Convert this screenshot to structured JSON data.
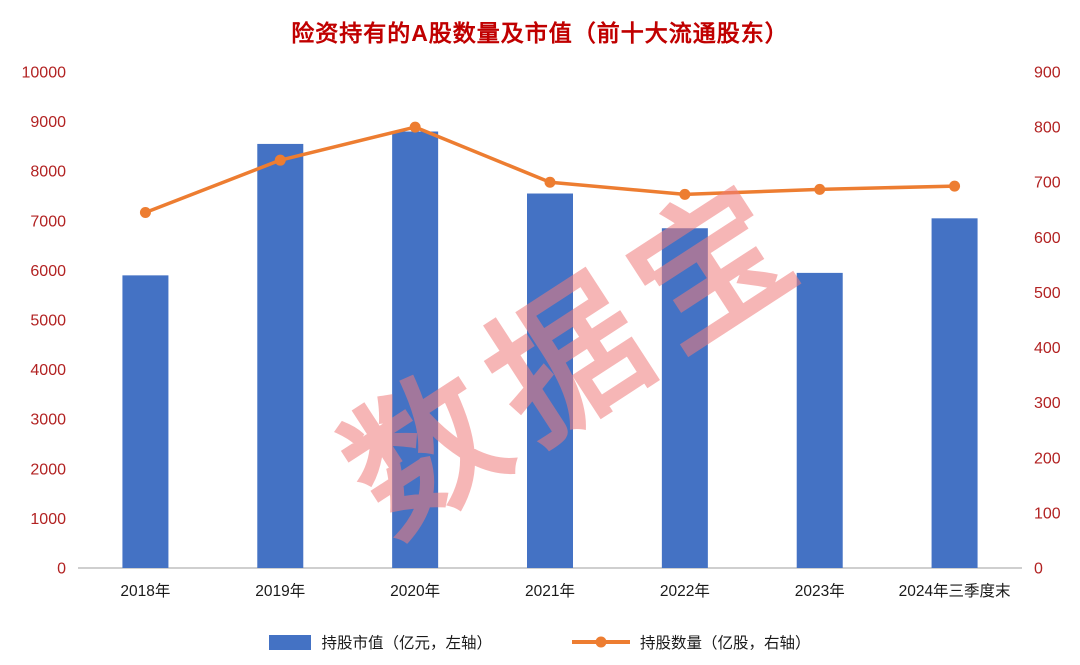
{
  "watermark": "数据宝",
  "colors": {
    "title": "#C00000",
    "tick_label": "#B22222",
    "x_label": "#1a1a1a",
    "watermark": "#F07C7C",
    "axis_line": "#BFBFBF"
  },
  "chart_data": {
    "type": "combo-bar-line",
    "title": "险资持有的A股数量及市值（前十大流通股东）",
    "categories": [
      "2018年",
      "2019年",
      "2020年",
      "2021年",
      "2022年",
      "2023年",
      "2024年三季度末"
    ],
    "series": [
      {
        "name": "持股市值（亿元，左轴）",
        "type": "bar",
        "axis": "left",
        "color": "#4472C4",
        "values": [
          5900,
          8550,
          8800,
          7550,
          6850,
          5950,
          7050
        ]
      },
      {
        "name": "持股数量（亿股，右轴）",
        "type": "line",
        "axis": "right",
        "color": "#ED7D31",
        "values": [
          645,
          740,
          800,
          700,
          678,
          687,
          693
        ]
      }
    ],
    "left_axis": {
      "min": 0,
      "max": 10000,
      "step": 1000
    },
    "right_axis": {
      "min": 0,
      "max": 900,
      "step": 100
    },
    "grid": false,
    "legend_position": "bottom"
  }
}
